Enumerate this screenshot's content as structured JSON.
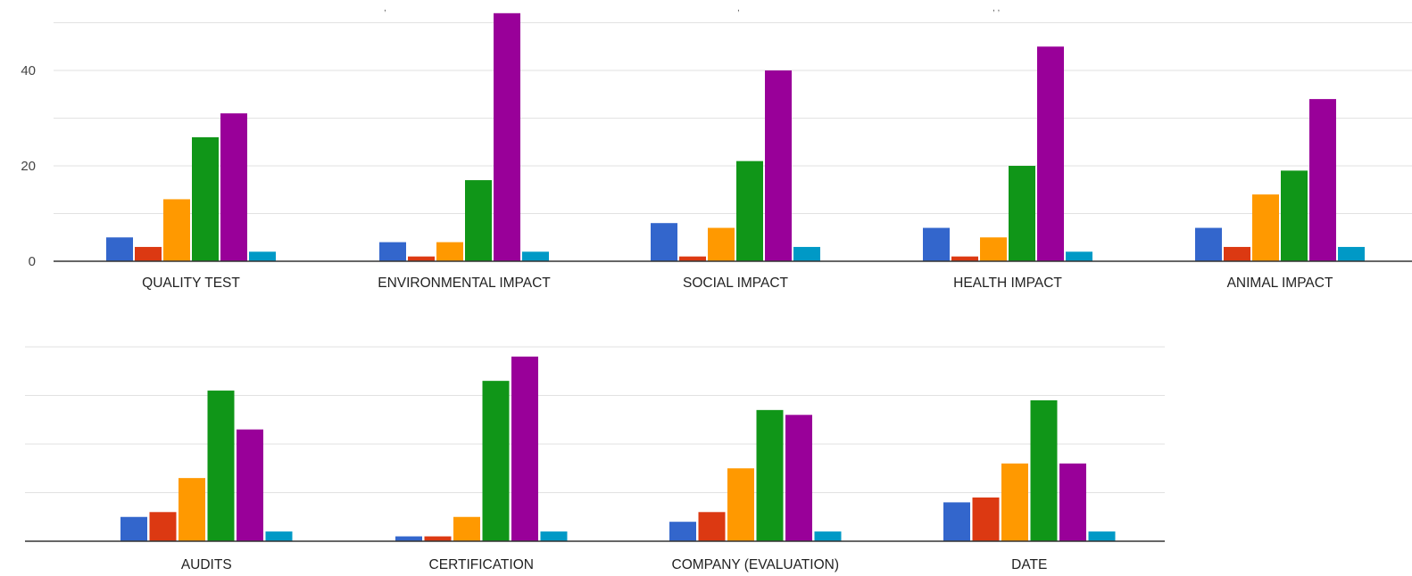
{
  "chart_data": [
    {
      "type": "bar",
      "categories": [
        "QUALITY TEST",
        "ENVIRONMENTAL IMPACT",
        "SOCIAL IMPACT",
        "HEALTH IMPACT",
        "ANIMAL IMPACT"
      ],
      "series": [
        {
          "color": "#3366cc",
          "values": [
            5,
            4,
            8,
            7,
            7
          ]
        },
        {
          "color": "#dc3912",
          "values": [
            3,
            1,
            1,
            1,
            3
          ]
        },
        {
          "color": "#ff9900",
          "values": [
            13,
            4,
            7,
            5,
            14
          ]
        },
        {
          "color": "#109618",
          "values": [
            26,
            17,
            21,
            20,
            19
          ]
        },
        {
          "color": "#990099",
          "values": [
            31,
            52,
            40,
            45,
            34
          ]
        },
        {
          "color": "#0099c6",
          "values": [
            2,
            2,
            3,
            2,
            3
          ]
        }
      ],
      "ylim": [
        0,
        50
      ],
      "yticks": [
        "0",
        "20",
        "40"
      ],
      "grid": true,
      "legend": "none"
    },
    {
      "type": "bar",
      "categories": [
        "AUDITS",
        "CERTIFICATION",
        "COMPANY (EVALUATION)",
        "DATE"
      ],
      "series": [
        {
          "color": "#3366cc",
          "values": [
            5,
            1,
            4,
            8
          ]
        },
        {
          "color": "#dc3912",
          "values": [
            6,
            1,
            6,
            9
          ]
        },
        {
          "color": "#ff9900",
          "values": [
            13,
            5,
            15,
            16
          ]
        },
        {
          "color": "#109618",
          "values": [
            31,
            33,
            27,
            29
          ]
        },
        {
          "color": "#990099",
          "values": [
            23,
            38,
            26,
            16
          ]
        },
        {
          "color": "#0099c6",
          "values": [
            2,
            2,
            2,
            2
          ]
        }
      ],
      "ylim": [
        0,
        40
      ],
      "yticks": [],
      "grid": true,
      "legend": "none"
    }
  ]
}
